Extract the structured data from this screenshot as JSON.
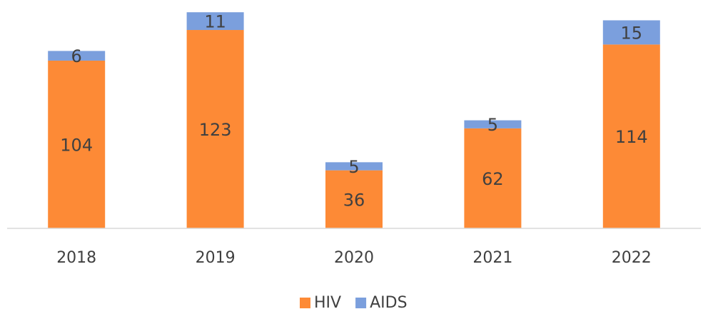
{
  "chart_data": {
    "type": "bar",
    "stacked": true,
    "categories": [
      "2018",
      "2019",
      "2020",
      "2021",
      "2022"
    ],
    "series": [
      {
        "name": "HIV",
        "color": "#fd8a36",
        "values": [
          104,
          123,
          36,
          62,
          114
        ]
      },
      {
        "name": "AIDS",
        "color": "#7b9fdd",
        "values": [
          6,
          11,
          5,
          5,
          15
        ]
      }
    ],
    "ylim": [
      0,
      140
    ],
    "legend": "bottom"
  }
}
